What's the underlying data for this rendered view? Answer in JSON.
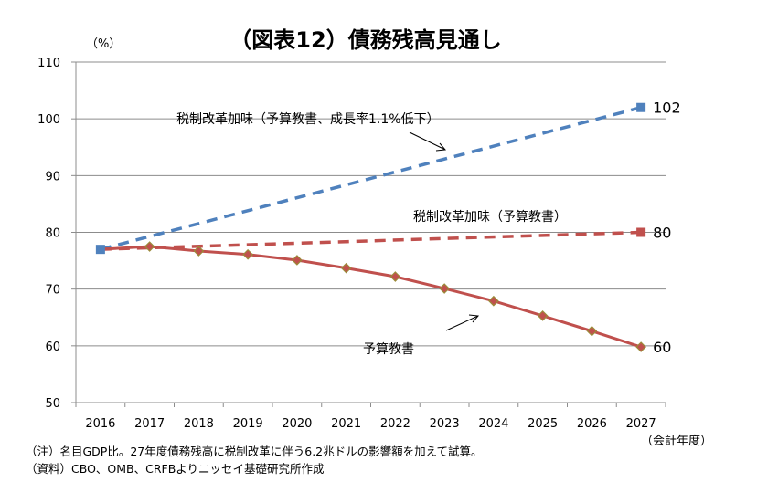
{
  "chart_data": {
    "type": "line",
    "title": "（図表12）債務残高見通し",
    "ylabel": "（%）",
    "xlabel": "（会計年度）",
    "ylim": [
      50,
      110
    ],
    "yticks": [
      50,
      60,
      70,
      80,
      90,
      100,
      110
    ],
    "grid": true,
    "categories": [
      "2016",
      "2017",
      "2018",
      "2019",
      "2020",
      "2021",
      "2022",
      "2023",
      "2024",
      "2025",
      "2026",
      "2027"
    ],
    "series": [
      {
        "name": "税制改革加味（予算教書、成長率1.1%低下）",
        "style": "dashed",
        "color": "#4F81BD",
        "points": [
          {
            "x": "2016",
            "y": 77.0
          },
          {
            "x": "2027",
            "y": 102
          }
        ],
        "end_label": "102"
      },
      {
        "name": "税制改革加味（予算教書）",
        "style": "dashed",
        "color": "#C0504D",
        "points": [
          {
            "x": "2016",
            "y": 77.0
          },
          {
            "x": "2027",
            "y": 80
          }
        ],
        "end_label": "80"
      },
      {
        "name": "予算教書",
        "style": "solid",
        "color": "#C0504D",
        "marker_color": "#C0504D",
        "marker_border": "#9B8B3A",
        "points": [
          {
            "x": "2016",
            "y": 77.0
          },
          {
            "x": "2017",
            "y": 77.5
          },
          {
            "x": "2018",
            "y": 76.7
          },
          {
            "x": "2019",
            "y": 76.1
          },
          {
            "x": "2020",
            "y": 75.1
          },
          {
            "x": "2021",
            "y": 73.7
          },
          {
            "x": "2022",
            "y": 72.2
          },
          {
            "x": "2023",
            "y": 70.1
          },
          {
            "x": "2024",
            "y": 67.9
          },
          {
            "x": "2025",
            "y": 65.3
          },
          {
            "x": "2026",
            "y": 62.6
          },
          {
            "x": "2027",
            "y": 59.8
          }
        ],
        "end_label": "60"
      }
    ],
    "annotations": [
      {
        "text": "税制改革加味（予算教書、成長率1.1%低下）",
        "points_to": "税制改革加味（予算教書、成長率1.1%低下）"
      },
      {
        "text": "税制改革加味（予算教書）",
        "points_to": "税制改革加味（予算教書）"
      },
      {
        "text": "予算教書",
        "points_to": "予算教書"
      }
    ],
    "start_marker": {
      "x": "2016",
      "y": 77.0,
      "color": "#4F81BD"
    }
  },
  "footnotes": {
    "note": "（注）名目GDP比。27年度債務残高に税制改革に伴う6.2兆ドルの影響額を加えて試算。",
    "source": "（資料）CBO、OMB、CRFBよりニッセイ基礎研究所作成"
  }
}
